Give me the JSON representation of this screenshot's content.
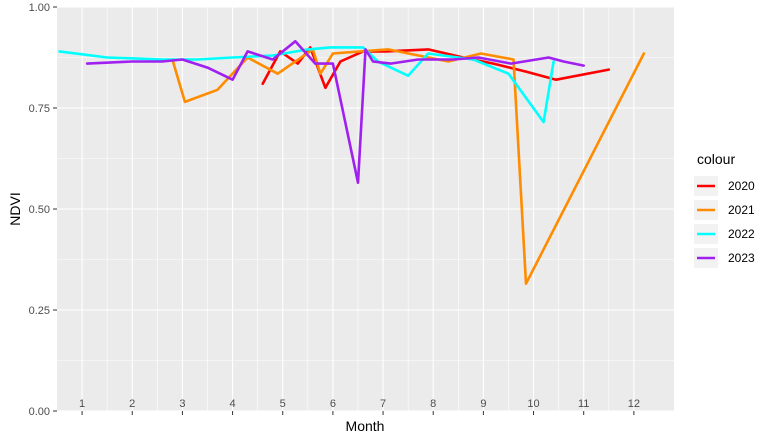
{
  "chart_data": {
    "type": "line",
    "xlabel": "Month",
    "ylabel": "NDVI",
    "x_range": [
      0.5,
      12.8
    ],
    "ylim": [
      0,
      1
    ],
    "y_ticks": [
      0.0,
      0.25,
      0.5,
      0.75,
      1.0
    ],
    "y_tick_labels": [
      "0.00",
      "0.25",
      "0.50",
      "0.75",
      "1.00"
    ],
    "x_ticks": [
      1,
      2,
      3,
      4,
      5,
      6,
      7,
      8,
      9,
      10,
      11,
      12
    ],
    "x_tick_labels": [
      "1",
      "2",
      "3",
      "4",
      "5",
      "6",
      "7",
      "8",
      "9",
      "10",
      "11",
      "12"
    ],
    "legend": {
      "title": "colour",
      "position": "right"
    },
    "grid": true,
    "series": [
      {
        "name": "2020",
        "color": "#FF0000",
        "x": [
          4.6,
          4.95,
          5.3,
          5.55,
          5.85,
          6.15,
          6.6,
          7.05,
          7.9,
          8.6,
          9.2,
          9.85,
          10.45,
          11.5
        ],
        "y": [
          0.81,
          0.89,
          0.86,
          0.9,
          0.8,
          0.865,
          0.89,
          0.89,
          0.895,
          0.875,
          0.86,
          0.84,
          0.82,
          0.845
        ]
      },
      {
        "name": "2021",
        "color": "#FF8C00",
        "x": [
          2.8,
          3.05,
          3.7,
          4.3,
          4.9,
          5.6,
          5.75,
          6.0,
          7.1,
          8.3,
          8.95,
          9.6,
          9.85,
          12.2
        ],
        "y": [
          0.87,
          0.765,
          0.795,
          0.875,
          0.835,
          0.895,
          0.835,
          0.885,
          0.895,
          0.865,
          0.885,
          0.87,
          0.315,
          0.885
        ]
      },
      {
        "name": "2022",
        "color": "#00FFFF",
        "x": [
          0.55,
          1.5,
          2.6,
          3.3,
          4.0,
          4.8,
          5.5,
          5.95,
          6.6,
          6.9,
          7.5,
          7.9,
          8.8,
          9.5,
          10.2,
          10.4
        ],
        "y": [
          0.89,
          0.875,
          0.87,
          0.87,
          0.875,
          0.88,
          0.895,
          0.9,
          0.9,
          0.865,
          0.83,
          0.885,
          0.87,
          0.835,
          0.715,
          0.865
        ]
      },
      {
        "name": "2023",
        "color": "#A020F0",
        "x": [
          1.1,
          2.0,
          2.6,
          3.0,
          3.5,
          4.0,
          4.3,
          4.8,
          5.25,
          5.65,
          6.0,
          6.5,
          6.65,
          6.8,
          7.15,
          7.7,
          8.4,
          8.9,
          9.55,
          10.3,
          10.6,
          11.0
        ],
        "y": [
          0.86,
          0.865,
          0.865,
          0.87,
          0.85,
          0.82,
          0.89,
          0.87,
          0.915,
          0.86,
          0.86,
          0.565,
          0.895,
          0.865,
          0.86,
          0.87,
          0.87,
          0.875,
          0.86,
          0.875,
          0.865,
          0.855
        ]
      }
    ]
  }
}
